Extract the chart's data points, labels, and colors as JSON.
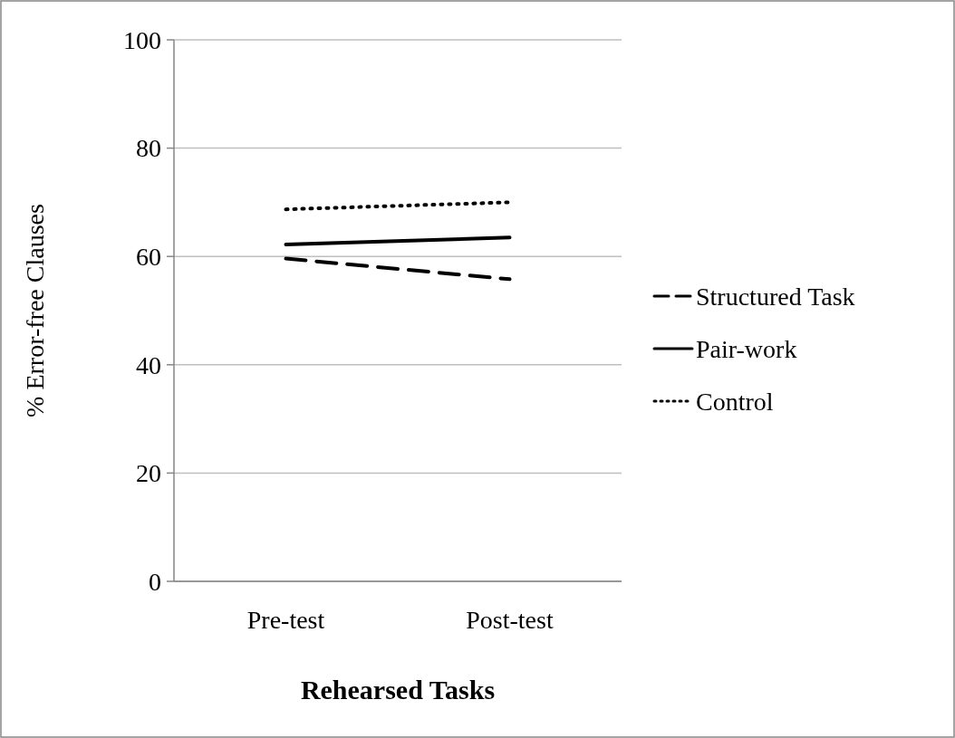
{
  "chart_data": {
    "type": "line",
    "xlabel": "Rehearsed Tasks",
    "ylabel": "% Error-free Clauses",
    "categories": [
      "Pre-test",
      "Post-test"
    ],
    "series": [
      {
        "name": "Structured Task",
        "color": "#000000",
        "values": [
          59.6,
          55.8
        ],
        "line_style": "dashed"
      },
      {
        "name": "Pair-work",
        "color": "#000000",
        "values": [
          62.2,
          63.5
        ],
        "line_style": "solid"
      },
      {
        "name": "Control",
        "color": "#000000",
        "values": [
          68.7,
          70.0
        ],
        "line_style": "dotted"
      }
    ],
    "ylim": [
      0,
      100
    ],
    "yticks": [
      0,
      20,
      40,
      60,
      80,
      100
    ],
    "grid": "y",
    "legend": "right",
    "marker": "none"
  }
}
